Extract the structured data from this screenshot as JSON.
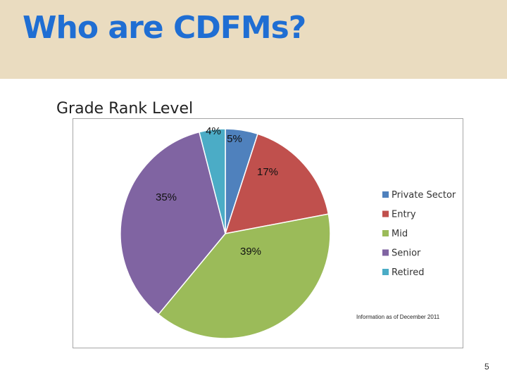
{
  "slide": {
    "title": "Who are CDFMs?",
    "page_number": "5"
  },
  "chart_data": {
    "type": "pie",
    "title": "Grade Rank Level",
    "categories": [
      "Private Sector",
      "Entry",
      "Mid",
      "Senior",
      "Retired"
    ],
    "values": [
      5,
      17,
      39,
      35,
      4
    ],
    "labels": [
      "5%",
      "17%",
      "39%",
      "35%",
      "4%"
    ],
    "colors": [
      "#4f81bd",
      "#c0504d",
      "#9bbb59",
      "#8064a2",
      "#4bacc6"
    ],
    "legend": "right",
    "annotation": "Information as of December 2011"
  }
}
